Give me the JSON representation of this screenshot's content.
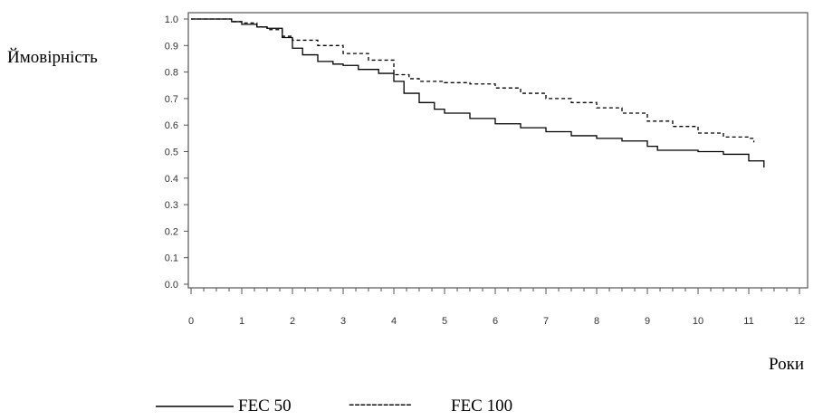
{
  "chart_data": {
    "type": "line",
    "title": "",
    "ylabel": "Ймовірність",
    "xlabel": "Роки",
    "xlim": [
      0,
      12
    ],
    "ylim": [
      0.0,
      1.0
    ],
    "x_ticks": [
      "0",
      "1",
      "2",
      "3",
      "4",
      "5",
      "6",
      "7",
      "8",
      "9",
      "10",
      "11",
      "12"
    ],
    "y_ticks": [
      "0.0",
      "0.1",
      "0.2",
      "0.3",
      "0.4",
      "0.5",
      "0.6",
      "0.7",
      "0.8",
      "0.9",
      "1.0"
    ],
    "x_tick_values": [
      0,
      1,
      2,
      3,
      4,
      5,
      6,
      7,
      8,
      9,
      10,
      11,
      12
    ],
    "y_tick_values": [
      0.0,
      0.1,
      0.2,
      0.3,
      0.4,
      0.5,
      0.6,
      0.7,
      0.8,
      0.9,
      1.0
    ],
    "grid": false,
    "legend_position": "bottom",
    "series": [
      {
        "name": "FEC 50",
        "style": "solid",
        "color": "#000000",
        "points": [
          [
            0.0,
            1.0
          ],
          [
            0.5,
            1.0
          ],
          [
            0.8,
            0.99
          ],
          [
            1.0,
            0.98
          ],
          [
            1.3,
            0.97
          ],
          [
            1.5,
            0.965
          ],
          [
            1.8,
            0.93
          ],
          [
            2.0,
            0.89
          ],
          [
            2.2,
            0.865
          ],
          [
            2.5,
            0.84
          ],
          [
            2.8,
            0.83
          ],
          [
            3.0,
            0.825
          ],
          [
            3.3,
            0.81
          ],
          [
            3.7,
            0.795
          ],
          [
            4.0,
            0.765
          ],
          [
            4.2,
            0.72
          ],
          [
            4.5,
            0.685
          ],
          [
            4.8,
            0.66
          ],
          [
            5.0,
            0.645
          ],
          [
            5.5,
            0.625
          ],
          [
            6.0,
            0.605
          ],
          [
            6.5,
            0.59
          ],
          [
            7.0,
            0.575
          ],
          [
            7.5,
            0.56
          ],
          [
            8.0,
            0.55
          ],
          [
            8.5,
            0.54
          ],
          [
            9.0,
            0.52
          ],
          [
            9.2,
            0.505
          ],
          [
            9.5,
            0.505
          ],
          [
            10.0,
            0.5
          ],
          [
            10.5,
            0.49
          ],
          [
            11.0,
            0.465
          ],
          [
            11.3,
            0.44
          ]
        ]
      },
      {
        "name": "FEC 100",
        "style": "dashed",
        "color": "#000000",
        "points": [
          [
            0.0,
            1.0
          ],
          [
            0.5,
            1.0
          ],
          [
            0.8,
            0.99
          ],
          [
            1.0,
            0.985
          ],
          [
            1.3,
            0.97
          ],
          [
            1.5,
            0.96
          ],
          [
            1.8,
            0.935
          ],
          [
            2.0,
            0.92
          ],
          [
            2.5,
            0.9
          ],
          [
            3.0,
            0.87
          ],
          [
            3.5,
            0.845
          ],
          [
            4.0,
            0.79
          ],
          [
            4.3,
            0.775
          ],
          [
            4.5,
            0.765
          ],
          [
            5.0,
            0.76
          ],
          [
            5.5,
            0.755
          ],
          [
            6.0,
            0.74
          ],
          [
            6.5,
            0.72
          ],
          [
            7.0,
            0.7
          ],
          [
            7.5,
            0.685
          ],
          [
            8.0,
            0.665
          ],
          [
            8.5,
            0.645
          ],
          [
            9.0,
            0.615
          ],
          [
            9.5,
            0.595
          ],
          [
            10.0,
            0.57
          ],
          [
            10.5,
            0.555
          ],
          [
            11.0,
            0.55
          ],
          [
            11.1,
            0.535
          ]
        ]
      }
    ]
  },
  "legend": {
    "fec50_label": "FEC 50",
    "fec100_label": "FEC 100",
    "fec100_dashes": "-----------"
  }
}
